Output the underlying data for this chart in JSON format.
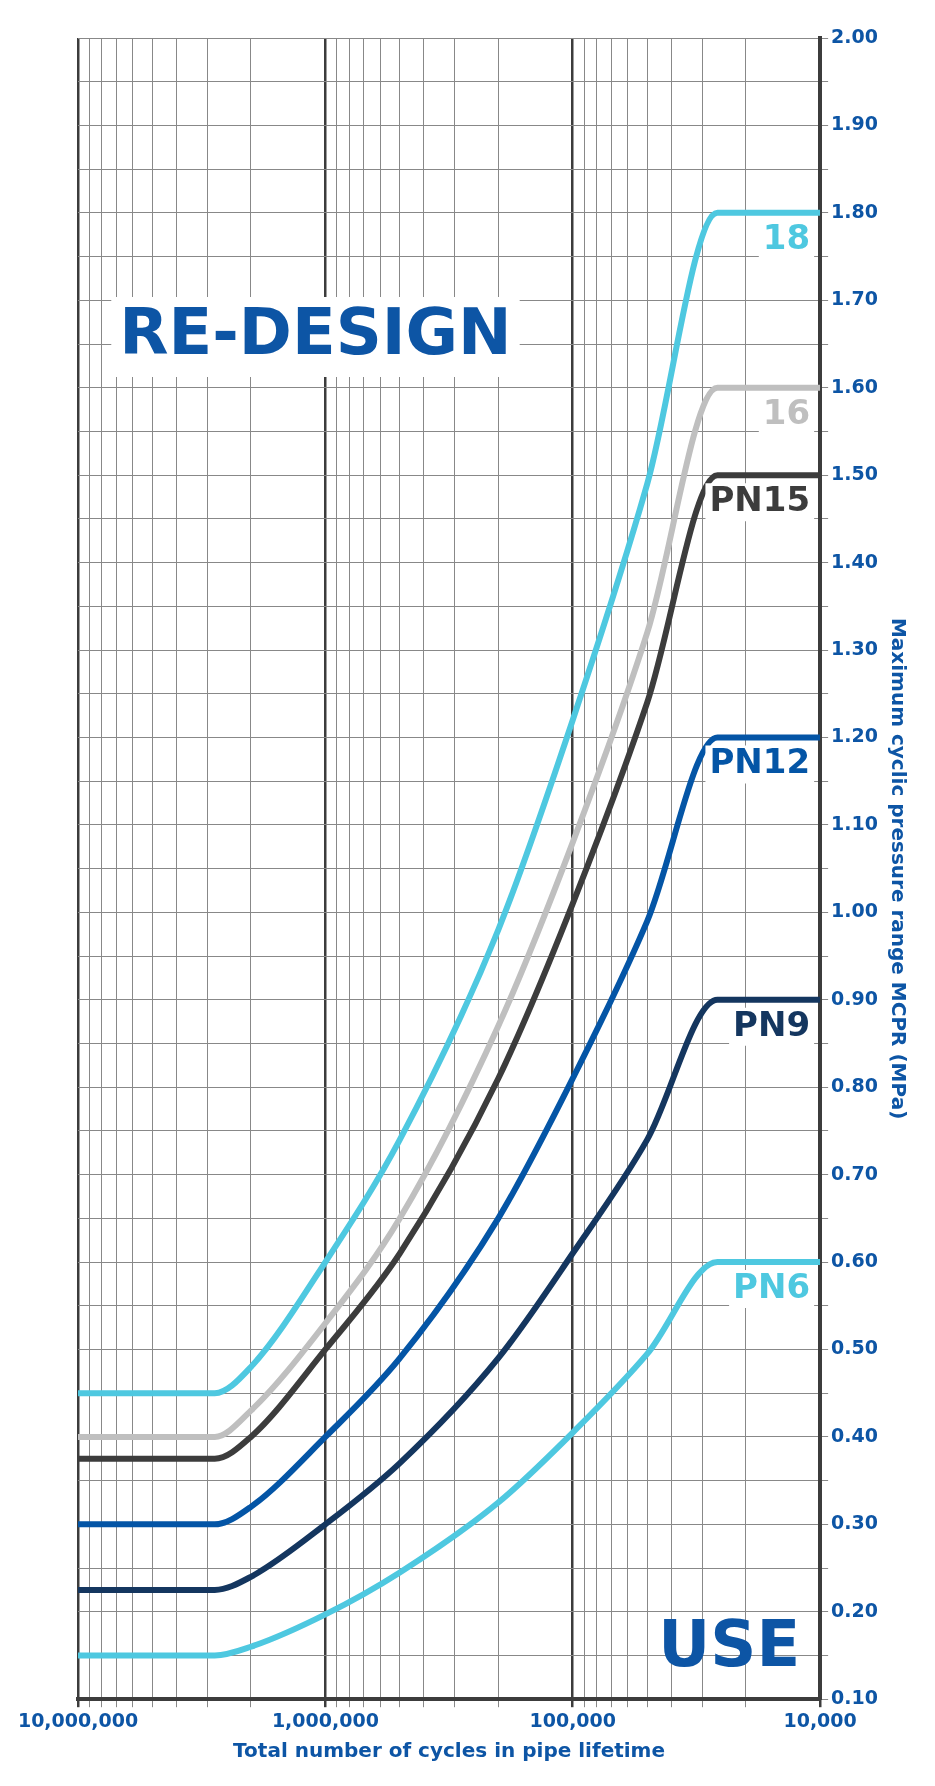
{
  "chart_data": {
    "type": "line",
    "xlabel": "Total number of cycles in pipe lifetime",
    "ylabel": "Maximum cyclic pressure range MCPR (MPa)",
    "log": "x",
    "grid": true,
    "legend": false,
    "marker": "none",
    "line_style": "solid",
    "ylim": [
      0.1,
      2.0
    ],
    "yticks": [
      {
        "value": 0.1,
        "label": "0.10"
      },
      {
        "value": 0.15,
        "label": null
      },
      {
        "value": 0.2,
        "label": "0.20"
      },
      {
        "value": 0.25,
        "label": null
      },
      {
        "value": 0.3,
        "label": "0.30"
      },
      {
        "value": 0.35,
        "label": null
      },
      {
        "value": 0.4,
        "label": "0.40"
      },
      {
        "value": 0.45,
        "label": null
      },
      {
        "value": 0.5,
        "label": "0.50"
      },
      {
        "value": 0.55,
        "label": null
      },
      {
        "value": 0.6,
        "label": "0.60"
      },
      {
        "value": 0.65,
        "label": null
      },
      {
        "value": 0.7,
        "label": "0.70"
      },
      {
        "value": 0.75,
        "label": null
      },
      {
        "value": 0.8,
        "label": "0.80"
      },
      {
        "value": 0.85,
        "label": null
      },
      {
        "value": 0.9,
        "label": "0.90"
      },
      {
        "value": 0.95,
        "label": null
      },
      {
        "value": 1.0,
        "label": "1.00"
      },
      {
        "value": 1.05,
        "label": null
      },
      {
        "value": 1.1,
        "label": "1.10"
      },
      {
        "value": 1.15,
        "label": null
      },
      {
        "value": 1.2,
        "label": "1.20"
      },
      {
        "value": 1.25,
        "label": null
      },
      {
        "value": 1.3,
        "label": "1.30"
      },
      {
        "value": 1.35,
        "label": null
      },
      {
        "value": 1.4,
        "label": "1.40"
      },
      {
        "value": 1.45,
        "label": null
      },
      {
        "value": 1.5,
        "label": "1.50"
      },
      {
        "value": 1.55,
        "label": null
      },
      {
        "value": 1.6,
        "label": "1.60"
      },
      {
        "value": 1.65,
        "label": null
      },
      {
        "value": 1.7,
        "label": "1.70"
      },
      {
        "value": 1.75,
        "label": null
      },
      {
        "value": 1.8,
        "label": "1.80"
      },
      {
        "value": 1.85,
        "label": null
      },
      {
        "value": 1.9,
        "label": "1.90"
      },
      {
        "value": 1.95,
        "label": null
      },
      {
        "value": 2.0,
        "label": "2.00"
      }
    ],
    "xlim": [
      10000000,
      10000
    ],
    "xticks": [
      {
        "value": 10000,
        "label": "10,000"
      },
      {
        "value": 20000,
        "label": null
      },
      {
        "value": 30000,
        "label": null
      },
      {
        "value": 40000,
        "label": null
      },
      {
        "value": 50000,
        "label": null
      },
      {
        "value": 60000,
        "label": null
      },
      {
        "value": 70000,
        "label": null
      },
      {
        "value": 80000,
        "label": null
      },
      {
        "value": 90000,
        "label": null
      },
      {
        "value": 100000,
        "label": "100,000"
      },
      {
        "value": 200000,
        "label": null
      },
      {
        "value": 300000,
        "label": null
      },
      {
        "value": 400000,
        "label": null
      },
      {
        "value": 500000,
        "label": null
      },
      {
        "value": 600000,
        "label": null
      },
      {
        "value": 700000,
        "label": null
      },
      {
        "value": 800000,
        "label": null
      },
      {
        "value": 900000,
        "label": null
      },
      {
        "value": 1000000,
        "label": "1,000,000"
      },
      {
        "value": 2000000,
        "label": null
      },
      {
        "value": 3000000,
        "label": null
      },
      {
        "value": 4000000,
        "label": null
      },
      {
        "value": 5000000,
        "label": null
      },
      {
        "value": 6000000,
        "label": null
      },
      {
        "value": 7000000,
        "label": null
      },
      {
        "value": 8000000,
        "label": null
      },
      {
        "value": 9000000,
        "label": null
      },
      {
        "value": 10000000,
        "label": "10,000,000"
      }
    ],
    "annotations": [
      "RE-DESIGN",
      "USE"
    ],
    "series": [
      {
        "name": "PN6",
        "color": "#4ec8e0",
        "values": [
          0.15,
          0.15,
          0.16,
          0.197,
          0.245,
          0.325,
          0.405,
          0.495,
          0.6,
          0.6
        ],
        "x": [
          10000000,
          2800000,
          2000000,
          1000000,
          500000,
          200000,
          100000,
          50000,
          26000,
          10000
        ]
      },
      {
        "name": "PN9",
        "color": "#14365f",
        "values": [
          0.225,
          0.225,
          0.24,
          0.3,
          0.37,
          0.49,
          0.61,
          0.74,
          0.9,
          0.9
        ],
        "x": [
          10000000,
          2800000,
          2000000,
          1000000,
          500000,
          200000,
          100000,
          50000,
          26000,
          10000
        ]
      },
      {
        "name": "PN12",
        "color": "#0455a6",
        "values": [
          0.3,
          0.3,
          0.32,
          0.4,
          0.49,
          0.65,
          0.81,
          0.99,
          1.2,
          1.2
        ],
        "x": [
          10000000,
          2800000,
          2000000,
          1000000,
          500000,
          200000,
          100000,
          50000,
          26000,
          10000
        ]
      },
      {
        "name": "PN15",
        "color": "#3c3c3c",
        "values": [
          0.375,
          0.375,
          0.4,
          0.5,
          0.61,
          0.81,
          1.01,
          1.24,
          1.5,
          1.5
        ],
        "x": [
          10000000,
          2800000,
          2000000,
          1000000,
          500000,
          200000,
          100000,
          50000,
          26000,
          10000
        ]
      },
      {
        "name": "16",
        "color": "#bfbfbf",
        "values": [
          0.4,
          0.4,
          0.43,
          0.53,
          0.65,
          0.87,
          1.08,
          1.32,
          1.6,
          1.6
        ],
        "x": [
          10000000,
          2800000,
          2000000,
          1000000,
          500000,
          200000,
          100000,
          50000,
          26000,
          10000
        ]
      },
      {
        "name": "18",
        "color": "#4ec8e0",
        "values": [
          0.45,
          0.45,
          0.48,
          0.6,
          0.74,
          0.98,
          1.22,
          1.49,
          1.8,
          1.8
        ],
        "x": [
          10000000,
          2800000,
          2000000,
          1000000,
          500000,
          200000,
          100000,
          50000,
          26000,
          10000
        ]
      }
    ]
  }
}
